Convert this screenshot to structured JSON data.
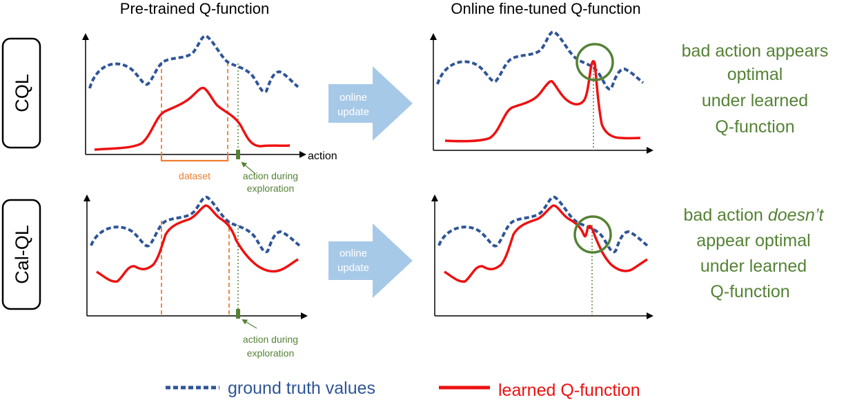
{
  "headers": {
    "pretrained": "Pre-trained Q-function",
    "finetuned": "Online fine-tuned Q-function"
  },
  "rows": {
    "cql": "CQL",
    "calql": "Cal-QL"
  },
  "arrows": {
    "line1": "online",
    "line2": "update"
  },
  "axis": {
    "x_label": "action"
  },
  "annotations": {
    "dataset": "dataset",
    "exploration_line1": "action during",
    "exploration_line2": "exploration"
  },
  "cql_note": [
    "bad action appears",
    "optimal",
    "under learned",
    "Q-function"
  ],
  "calql_note": {
    "line1_prefix": "bad action ",
    "line1_emph": "doesn’t",
    "line2": "appear optimal",
    "line3": "under learned",
    "line4": "Q-function"
  },
  "legend": {
    "ground_truth": "ground truth values",
    "learned": "learned Q-function"
  },
  "colors": {
    "ground_truth": "#2f5597",
    "learned": "#ee1111",
    "dataset": "#ed7d31",
    "exploration": "#548235",
    "arrow": "#9dc3e6",
    "note_text": "#548235",
    "legend_gt_text": "#2f5597",
    "legend_q_text": "#ee1111"
  }
}
